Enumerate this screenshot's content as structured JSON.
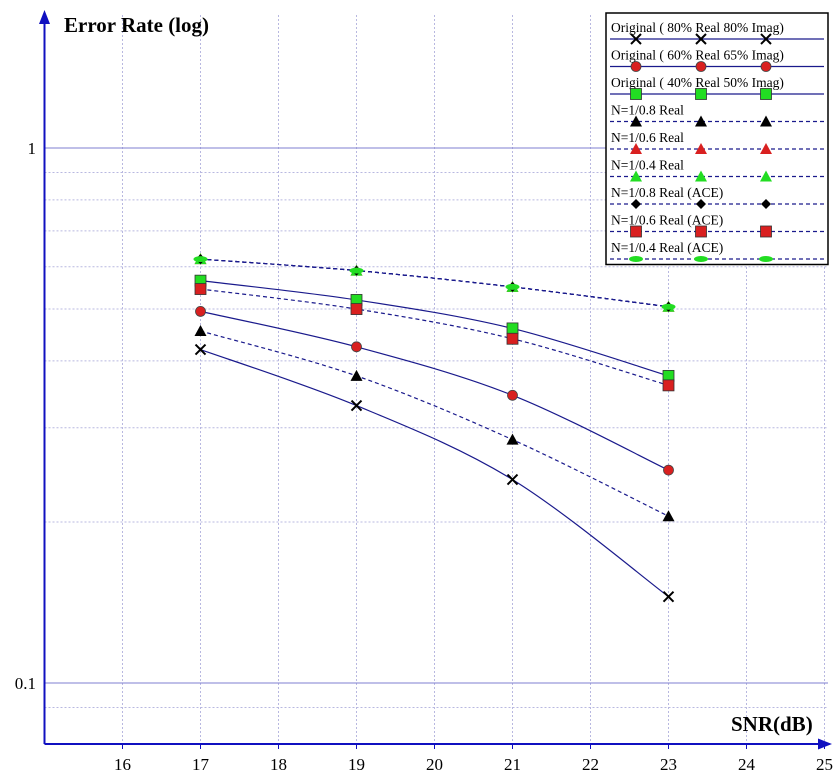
{
  "chart_data": {
    "type": "line",
    "ylabel": "Error Rate (log)",
    "xlabel": "SNR(dB)",
    "yscale": "log",
    "xlim": [
      15,
      26
    ],
    "ylim": [
      0.085,
      1.9
    ],
    "x_ticks": [
      16,
      17,
      18,
      19,
      20,
      21,
      22,
      23,
      24,
      25
    ],
    "y_tick_labels": [
      {
        "value": 1,
        "label": "1"
      },
      {
        "value": 0.1,
        "label": "0.1"
      }
    ],
    "grid": true,
    "legend_position": "top-right",
    "x": [
      17,
      19,
      21,
      23
    ],
    "series": [
      {
        "name": "Original ( 80% Real  80% Imag)",
        "values": [
          0.42,
          0.33,
          0.24,
          0.145
        ],
        "color": "#1a1a8c",
        "dash": false,
        "marker": "x",
        "marker_color": "#000000"
      },
      {
        "name": "Original ( 60% Real  65% Imag)",
        "values": [
          0.495,
          0.425,
          0.345,
          0.25
        ],
        "color": "#1a1a8c",
        "dash": false,
        "marker": "circle",
        "marker_color": "#d92020"
      },
      {
        "name": "Original ( 40% Real  50% Imag)",
        "values": [
          0.565,
          0.52,
          0.46,
          0.375
        ],
        "color": "#1a1a8c",
        "dash": false,
        "marker": "square",
        "marker_color": "#22dd22"
      },
      {
        "name": "N=1/0.8 Real",
        "values": [
          0.455,
          0.375,
          0.285,
          0.205
        ],
        "color": "#1a1a8c",
        "dash": true,
        "marker": "triangle",
        "marker_color": "#000000"
      },
      {
        "name": "N=1/0.6 Real",
        "values": [
          0.62,
          0.59,
          0.55,
          0.505
        ],
        "color": "#1a1a8c",
        "dash": true,
        "marker": "triangle",
        "marker_color": "#d92020"
      },
      {
        "name": "N=1/0.4 Real",
        "values": [
          0.62,
          0.59,
          0.55,
          0.505
        ],
        "color": "#1a1a8c",
        "dash": true,
        "marker": "triangle",
        "marker_color": "#22dd22"
      },
      {
        "name": "N=1/0.8 Real (ACE)",
        "values": [
          0.62,
          0.59,
          0.55,
          0.505
        ],
        "color": "#1a1a8c",
        "dash": true,
        "marker": "diamond",
        "marker_color": "#000000"
      },
      {
        "name": "N=1/0.6 Real (ACE)",
        "values": [
          0.545,
          0.5,
          0.44,
          0.36
        ],
        "color": "#1a1a8c",
        "dash": true,
        "marker": "square",
        "marker_color": "#d92020"
      },
      {
        "name": "N=1/0.4 Real (ACE)",
        "values": [
          0.62,
          0.59,
          0.55,
          0.505
        ],
        "color": "#1a1a8c",
        "dash": true,
        "marker": "ellipse",
        "marker_color": "#22dd22"
      }
    ]
  }
}
